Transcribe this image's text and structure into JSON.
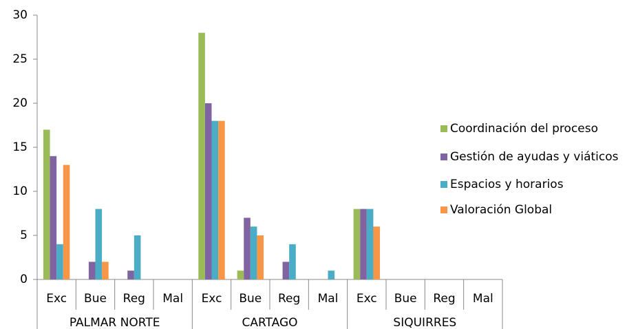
{
  "chart_data": {
    "type": "bar",
    "categories": [
      "Exc",
      "Bue",
      "Reg",
      "Mal",
      "Exc",
      "Bue",
      "Reg",
      "Mal",
      "Exc",
      "Bue",
      "Reg",
      "Mal"
    ],
    "groups": [
      "PALMAR NORTE",
      "CARTAGO",
      "SIQUIRRES"
    ],
    "series": [
      {
        "name": "Coordinación del proceso",
        "color": "#9bbb59",
        "values": [
          17,
          0,
          0,
          0,
          28,
          1,
          0,
          0,
          8,
          0,
          0,
          0
        ]
      },
      {
        "name": "Gestión de ayudas y viáticos",
        "color": "#8064a2",
        "values": [
          14,
          2,
          1,
          0,
          20,
          7,
          2,
          0,
          8,
          0,
          0,
          0
        ]
      },
      {
        "name": "Espacios y horarios",
        "color": "#4bacc6",
        "values": [
          4,
          8,
          5,
          0,
          18,
          6,
          4,
          1,
          8,
          0,
          0,
          0
        ]
      },
      {
        "name": "Valoración Global",
        "color": "#f79646",
        "values": [
          13,
          2,
          0,
          0,
          18,
          5,
          0,
          0,
          6,
          0,
          0,
          0
        ]
      }
    ],
    "ylim": [
      0,
      30
    ],
    "yticks": [
      0,
      5,
      10,
      15,
      20,
      25,
      30
    ],
    "grid": false,
    "legend": "right"
  }
}
